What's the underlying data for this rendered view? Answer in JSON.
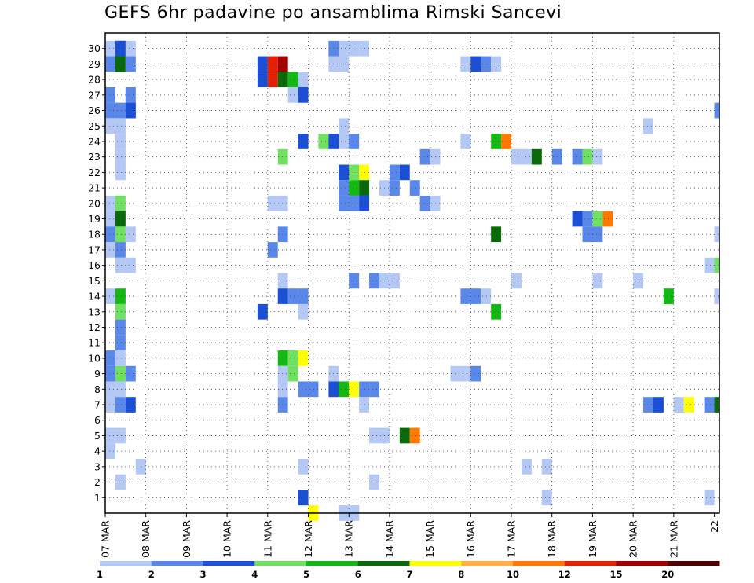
{
  "chart_data": {
    "type": "heatmap",
    "title": "GEFS 6hr padavine po ansamblima Rimski Sancevi",
    "y_ticks": [
      "1",
      "2",
      "3",
      "4",
      "5",
      "6",
      "7",
      "8",
      "9",
      "10",
      "11",
      "12",
      "13",
      "14",
      "15",
      "16",
      "17",
      "18",
      "19",
      "20",
      "21",
      "22",
      "23",
      "24",
      "25",
      "26",
      "27",
      "28",
      "29",
      "30"
    ],
    "x_ticks": [
      "07 MAR",
      "08 MAR",
      "09 MAR",
      "10 MAR",
      "11 MAR",
      "12 MAR",
      "13 MAR",
      "14 MAR",
      "15 MAR",
      "16 MAR",
      "17 MAR",
      "18 MAR",
      "19 MAR",
      "20 MAR",
      "21 MAR",
      "22"
    ],
    "grid": true,
    "legend": {
      "position": "bottom",
      "labels": [
        "1",
        "2",
        "3",
        "4",
        "5",
        "6",
        "7",
        "8",
        "10",
        "12",
        "15",
        "20"
      ],
      "colors": [
        "#b4c8f5",
        "#5a87ea",
        "#1a4fd6",
        "#70e060",
        "#14b814",
        "#0a6a0a",
        "#ffff00",
        "#ffb040",
        "#ff7800",
        "#e62000",
        "#a00000",
        "#500000"
      ]
    },
    "cells": [
      [
        0,
        30,
        1
      ],
      [
        0,
        29,
        1
      ],
      [
        0,
        29,
        2
      ],
      [
        1,
        30,
        1
      ],
      [
        1,
        30,
        2
      ],
      [
        1,
        30,
        3
      ],
      [
        1,
        29,
        3
      ],
      [
        1,
        29,
        4
      ],
      [
        1,
        29,
        5
      ],
      [
        1,
        29,
        6
      ],
      [
        2,
        30,
        1
      ],
      [
        2,
        29,
        1
      ],
      [
        2,
        29,
        2
      ],
      [
        0,
        27,
        1
      ],
      [
        0,
        27,
        2
      ],
      [
        2,
        27,
        1
      ],
      [
        2,
        27,
        2
      ],
      [
        2,
        26,
        1
      ],
      [
        2,
        26,
        2
      ],
      [
        0,
        26,
        2
      ],
      [
        1,
        26,
        1
      ],
      [
        1,
        26,
        2
      ],
      [
        2,
        26,
        3
      ],
      [
        0,
        25,
        1
      ],
      [
        1,
        25,
        1
      ],
      [
        1,
        24,
        1
      ],
      [
        1,
        23,
        1
      ],
      [
        1,
        22,
        1
      ],
      [
        0,
        20,
        1
      ],
      [
        1,
        20,
        4
      ],
      [
        0,
        19,
        1
      ],
      [
        1,
        19,
        6
      ],
      [
        0,
        18,
        2
      ],
      [
        1,
        18,
        4
      ],
      [
        2,
        18,
        1
      ],
      [
        0,
        17,
        1
      ],
      [
        1,
        17,
        2
      ],
      [
        1,
        16,
        1
      ],
      [
        2,
        16,
        1
      ],
      [
        0,
        14,
        1
      ],
      [
        1,
        14,
        5
      ],
      [
        1,
        13,
        4
      ],
      [
        1,
        12,
        2
      ],
      [
        1,
        11,
        2
      ],
      [
        0,
        10,
        2
      ],
      [
        1,
        10,
        1
      ],
      [
        0,
        9,
        2
      ],
      [
        1,
        9,
        4
      ],
      [
        2,
        9,
        2
      ],
      [
        0,
        8,
        1
      ],
      [
        1,
        8,
        1
      ],
      [
        0,
        7,
        1
      ],
      [
        1,
        7,
        2
      ],
      [
        2,
        7,
        3
      ],
      [
        0,
        5,
        1
      ],
      [
        1,
        5,
        1
      ],
      [
        0,
        4,
        1
      ],
      [
        1,
        2,
        1
      ],
      [
        3,
        3,
        1
      ],
      [
        15,
        29,
        3
      ],
      [
        16,
        29,
        10
      ],
      [
        17,
        29,
        11
      ],
      [
        15,
        28,
        3
      ],
      [
        16,
        28,
        10
      ],
      [
        17,
        28,
        6
      ],
      [
        18,
        28,
        5
      ],
      [
        19,
        28,
        1
      ],
      [
        18,
        27,
        1
      ],
      [
        19,
        27,
        3
      ],
      [
        17,
        23,
        4
      ],
      [
        19,
        24,
        3
      ],
      [
        21,
        24,
        4
      ],
      [
        16,
        20,
        1
      ],
      [
        17,
        20,
        1
      ],
      [
        17,
        18,
        2
      ],
      [
        16,
        17,
        2
      ],
      [
        17,
        15,
        1
      ],
      [
        17,
        14,
        3
      ],
      [
        18,
        14,
        2
      ],
      [
        19,
        14,
        2
      ],
      [
        15,
        13,
        3
      ],
      [
        19,
        13,
        1
      ],
      [
        17,
        10,
        5
      ],
      [
        18,
        10,
        4
      ],
      [
        19,
        10,
        7
      ],
      [
        17,
        9,
        1
      ],
      [
        18,
        9,
        4
      ],
      [
        17,
        8,
        1
      ],
      [
        19,
        8,
        2
      ],
      [
        20,
        8,
        2
      ],
      [
        17,
        7,
        2
      ],
      [
        19,
        3,
        1
      ],
      [
        19,
        1,
        3
      ],
      [
        20,
        0,
        7
      ],
      [
        22,
        30,
        2
      ],
      [
        23,
        30,
        1
      ],
      [
        24,
        30,
        1
      ],
      [
        25,
        30,
        1
      ],
      [
        22,
        29,
        1
      ],
      [
        23,
        29,
        1
      ],
      [
        23,
        25,
        1
      ],
      [
        22,
        24,
        3
      ],
      [
        23,
        24,
        1
      ],
      [
        24,
        24,
        2
      ],
      [
        24,
        22,
        1
      ],
      [
        23,
        22,
        3
      ],
      [
        24,
        22,
        4
      ],
      [
        25,
        22,
        7
      ],
      [
        28,
        22,
        2
      ],
      [
        29,
        22,
        3
      ],
      [
        23,
        21,
        2
      ],
      [
        24,
        21,
        5
      ],
      [
        25,
        21,
        6
      ],
      [
        27,
        21,
        1
      ],
      [
        28,
        21,
        2
      ],
      [
        23,
        20,
        2
      ],
      [
        24,
        20,
        2
      ],
      [
        25,
        20,
        3
      ],
      [
        24,
        15,
        2
      ],
      [
        26,
        15,
        2
      ],
      [
        27,
        15,
        1
      ],
      [
        28,
        15,
        1
      ],
      [
        22,
        9,
        1
      ],
      [
        22,
        8,
        3
      ],
      [
        23,
        8,
        5
      ],
      [
        24,
        8,
        7
      ],
      [
        25,
        8,
        2
      ],
      [
        26,
        8,
        2
      ],
      [
        25,
        7,
        1
      ],
      [
        26,
        5,
        1
      ],
      [
        27,
        5,
        1
      ],
      [
        29,
        5,
        6
      ],
      [
        30,
        5,
        9
      ],
      [
        26,
        2,
        1
      ],
      [
        23,
        0,
        1
      ],
      [
        24,
        0,
        1
      ],
      [
        31,
        23,
        2
      ],
      [
        32,
        23,
        1
      ],
      [
        32,
        20,
        1
      ],
      [
        31,
        20,
        2
      ],
      [
        30,
        21,
        2
      ],
      [
        35,
        29,
        1
      ],
      [
        36,
        29,
        3
      ],
      [
        37,
        29,
        2
      ],
      [
        38,
        29,
        1
      ],
      [
        35,
        24,
        1
      ],
      [
        38,
        24,
        5
      ],
      [
        39,
        24,
        9
      ],
      [
        35,
        14,
        2
      ],
      [
        36,
        14,
        2
      ],
      [
        37,
        14,
        1
      ],
      [
        38,
        13,
        5
      ],
      [
        34,
        9,
        1
      ],
      [
        35,
        9,
        1
      ],
      [
        36,
        9,
        2
      ],
      [
        38,
        18,
        6
      ],
      [
        40,
        23,
        1
      ],
      [
        41,
        23,
        1
      ],
      [
        42,
        23,
        6
      ],
      [
        44,
        23,
        2
      ],
      [
        40,
        15,
        1
      ],
      [
        41,
        3,
        1
      ],
      [
        43,
        3,
        1
      ],
      [
        43,
        1,
        1
      ],
      [
        46,
        23,
        2
      ],
      [
        47,
        23,
        4
      ],
      [
        48,
        23,
        1
      ],
      [
        46,
        19,
        3
      ],
      [
        47,
        19,
        2
      ],
      [
        48,
        19,
        4
      ],
      [
        49,
        19,
        9
      ],
      [
        47,
        18,
        2
      ],
      [
        48,
        18,
        2
      ],
      [
        48,
        15,
        1
      ],
      [
        52,
        15,
        1
      ],
      [
        55,
        14,
        5
      ],
      [
        53,
        25,
        1
      ],
      [
        53,
        7,
        2
      ],
      [
        54,
        7,
        3
      ],
      [
        56,
        7,
        1
      ],
      [
        57,
        7,
        7
      ],
      [
        59,
        7,
        2
      ],
      [
        60,
        7,
        6
      ],
      [
        59,
        1,
        1
      ],
      [
        60,
        14,
        1
      ],
      [
        59,
        16,
        1
      ],
      [
        60,
        16,
        4
      ],
      [
        60,
        18,
        1
      ],
      [
        60,
        26,
        2
      ]
    ]
  }
}
